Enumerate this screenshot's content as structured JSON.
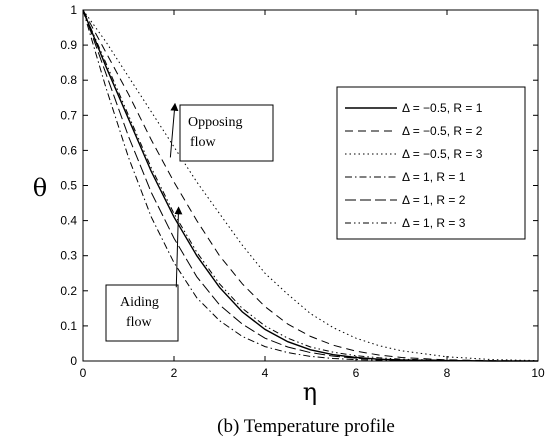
{
  "chart_data": {
    "type": "line",
    "xlabel": "η",
    "ylabel": "θ",
    "caption": "(b) Temperature profile",
    "xlim": [
      0,
      10
    ],
    "ylim": [
      0,
      1
    ],
    "xticks": [
      "0",
      "2",
      "4",
      "6",
      "8",
      "10"
    ],
    "yticks": [
      "0",
      "0.1",
      "0.2",
      "0.3",
      "0.4",
      "0.5",
      "0.6",
      "0.7",
      "0.8",
      "0.9",
      "1"
    ],
    "grid": false,
    "legend_position": "right",
    "series": [
      {
        "name": "Δ = −0.5, R = 1",
        "dash": "solid",
        "x": [
          0,
          0.5,
          1,
          1.5,
          2,
          2.5,
          3,
          3.5,
          4,
          4.5,
          5,
          5.5,
          6,
          6.5,
          7,
          8,
          9,
          10
        ],
        "y": [
          1.0,
          0.84,
          0.69,
          0.54,
          0.41,
          0.3,
          0.21,
          0.14,
          0.09,
          0.055,
          0.032,
          0.018,
          0.01,
          0.005,
          0.003,
          0.001,
          0.0,
          0.0
        ]
      },
      {
        "name": "Δ = −0.5, R = 2",
        "dash": "dashed",
        "x": [
          0,
          0.5,
          1,
          1.5,
          2,
          2.5,
          3,
          3.5,
          4,
          4.5,
          5,
          5.5,
          6,
          6.5,
          7,
          8,
          9,
          10
        ],
        "y": [
          1.0,
          0.88,
          0.76,
          0.63,
          0.51,
          0.4,
          0.3,
          0.22,
          0.155,
          0.105,
          0.07,
          0.045,
          0.028,
          0.017,
          0.01,
          0.003,
          0.001,
          0.0
        ]
      },
      {
        "name": "Δ = −0.5, R = 3",
        "dash": "dotted",
        "x": [
          0,
          0.5,
          1,
          1.5,
          2,
          2.5,
          3,
          3.5,
          4,
          4.5,
          5,
          5.5,
          6,
          6.5,
          7,
          8,
          9,
          10
        ],
        "y": [
          1.0,
          0.91,
          0.81,
          0.71,
          0.61,
          0.51,
          0.42,
          0.33,
          0.25,
          0.19,
          0.135,
          0.095,
          0.065,
          0.044,
          0.029,
          0.012,
          0.004,
          0.001
        ]
      },
      {
        "name": "Δ = 1, R = 1",
        "dash": "dashdot",
        "x": [
          0,
          0.5,
          1,
          1.5,
          2,
          2.5,
          3,
          3.5,
          4,
          4.5,
          5,
          5.5,
          6,
          7,
          8,
          9,
          10
        ],
        "y": [
          1.0,
          0.78,
          0.58,
          0.41,
          0.28,
          0.18,
          0.115,
          0.07,
          0.041,
          0.024,
          0.013,
          0.007,
          0.004,
          0.001,
          0.0,
          0.0,
          0.0
        ]
      },
      {
        "name": "Δ = 1, R = 2",
        "dash": "longdash",
        "x": [
          0,
          0.5,
          1,
          1.5,
          2,
          2.5,
          3,
          3.5,
          4,
          4.5,
          5,
          5.5,
          6,
          7,
          8,
          9,
          10
        ],
        "y": [
          1.0,
          0.82,
          0.64,
          0.48,
          0.35,
          0.24,
          0.16,
          0.105,
          0.065,
          0.04,
          0.024,
          0.014,
          0.008,
          0.002,
          0.001,
          0.0,
          0.0
        ]
      },
      {
        "name": "Δ = 1, R = 3",
        "dash": "dashdotdot",
        "x": [
          0,
          0.5,
          1,
          1.5,
          2,
          2.5,
          3,
          3.5,
          4,
          4.5,
          5,
          5.5,
          6,
          6.5,
          7,
          8,
          9,
          10
        ],
        "y": [
          1.0,
          0.85,
          0.7,
          0.55,
          0.42,
          0.31,
          0.22,
          0.15,
          0.1,
          0.065,
          0.04,
          0.025,
          0.015,
          0.009,
          0.005,
          0.002,
          0.0,
          0.0
        ]
      }
    ],
    "annotations": [
      {
        "text_lines": [
          "Opposing",
          "flow"
        ],
        "arrow_from": [
          1.92,
          0.58
        ],
        "arrow_to": [
          2.02,
          0.73
        ]
      },
      {
        "text_lines": [
          "Aiding",
          "flow"
        ],
        "arrow_from": [
          2.05,
          0.21
        ],
        "arrow_to": [
          2.1,
          0.435
        ]
      }
    ]
  }
}
